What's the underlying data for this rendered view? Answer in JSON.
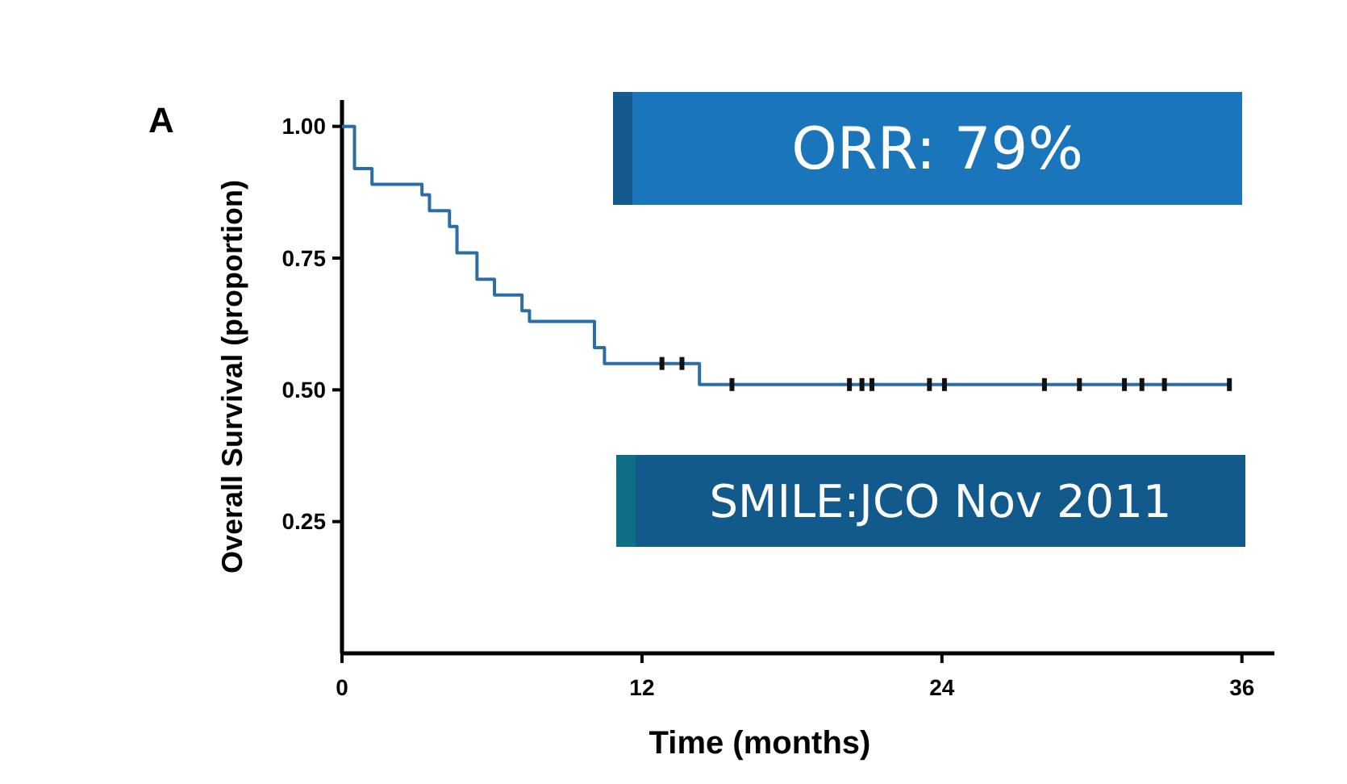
{
  "chart_data": {
    "type": "step",
    "xlabel": "Time (months)",
    "ylabel": "Overall Survival (proportion)",
    "annotations": [
      "A",
      "ORR: 79%",
      "SMILE:JCO Nov 2011"
    ],
    "xlim": [
      0,
      37.3
    ],
    "ylim": [
      0,
      1.05
    ],
    "xticks": [
      0,
      12,
      24,
      36
    ],
    "yticks": [
      {
        "value": 0.25,
        "label": "0.25"
      },
      {
        "value": 0.5,
        "label": "0.50"
      },
      {
        "value": 0.75,
        "label": "0.75"
      },
      {
        "value": 1,
        "label": "1.00"
      }
    ],
    "grid": false,
    "series": [
      {
        "color": "#2a6ea6",
        "x": [
          0,
          0.5,
          1.2,
          3.2,
          3.5,
          4.3,
          4.6,
          5.4,
          6.1,
          7.2,
          7.5,
          10.1,
          10.5,
          14.3,
          35.5
        ],
        "values": [
          1,
          0.92,
          0.89,
          0.87,
          0.84,
          0.81,
          0.76,
          0.71,
          0.68,
          0.65,
          0.63,
          0.58,
          0.55,
          0.51,
          0.51
        ]
      },
      {
        "type": "scatter",
        "color": "#111111",
        "x": [
          12.8,
          13.6,
          15.6,
          20.3,
          20.8,
          21.2,
          23.5,
          24.1,
          28.1,
          29.5,
          31.3,
          32.0,
          32.9,
          35.5
        ],
        "values": [
          0.55,
          0.55,
          0.51,
          0.51,
          0.51,
          0.51,
          0.51,
          0.51,
          0.51,
          0.51,
          0.51,
          0.51,
          0.51,
          0.51
        ]
      }
    ]
  }
}
